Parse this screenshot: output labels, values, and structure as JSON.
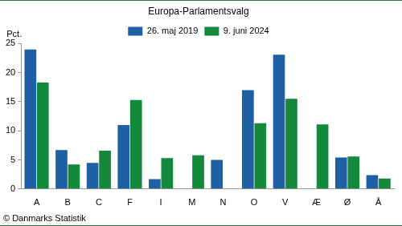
{
  "chart_data": {
    "type": "bar",
    "title": "Europa-Parlamentsvalg",
    "ylabel": "Pct.",
    "annotations": [
      "© Danmarks Statistik"
    ],
    "categories": [
      "A",
      "B",
      "C",
      "F",
      "I",
      "M",
      "N",
      "O",
      "V",
      "Æ",
      "Ø",
      "Å"
    ],
    "series": [
      {
        "name": "26. maj 2019",
        "color": "#1f5fa3",
        "values": [
          24.0,
          6.7,
          4.5,
          11.0,
          1.7,
          null,
          5.0,
          17.0,
          23.1,
          null,
          5.4,
          2.4
        ]
      },
      {
        "name": "9. juni 2024",
        "color": "#12893b",
        "values": [
          18.3,
          4.2,
          6.6,
          15.3,
          5.3,
          5.8,
          null,
          11.3,
          15.5,
          11.1,
          5.6,
          1.8
        ]
      }
    ],
    "ylim": [
      0,
      25
    ],
    "yticks": [
      0,
      5,
      10,
      15,
      20,
      25
    ],
    "grid": false,
    "legend": "top"
  }
}
